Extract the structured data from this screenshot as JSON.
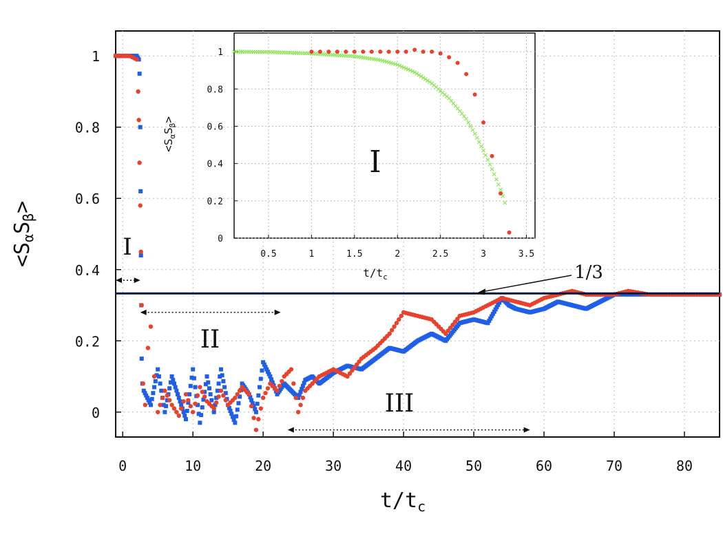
{
  "chart_data": [
    {
      "type": "scatter",
      "role": "main",
      "xlabel": "t/t",
      "xlabel_sub": "c",
      "ylabel": "<S",
      "ylabel_sub1": "α",
      "ylabel_mid": "S",
      "ylabel_sub2": "β",
      "ylabel_end": ">",
      "xlim": [
        -1,
        85
      ],
      "ylim": [
        -0.07,
        1.07
      ],
      "xticks": [
        "0",
        "10",
        "20",
        "30",
        "40",
        "50",
        "60",
        "70",
        "80"
      ],
      "yticks": [
        "0",
        "0.2",
        "0.4",
        "0.6",
        "0.8",
        "1"
      ],
      "reference_line": {
        "y": 0.333,
        "label": "1/3",
        "color": "#0a1a40"
      },
      "regions": [
        {
          "label": "I",
          "x_from": -1,
          "x_to": 2.5
        },
        {
          "label": "II",
          "x_from": 2.5,
          "x_to": 22.5
        },
        {
          "label": "III",
          "x_from": 23.5,
          "x_to": 58
        }
      ],
      "series": [
        {
          "name": "blue",
          "color": "#1f5fe8",
          "x": [
            -1,
            0,
            1,
            2,
            2.3,
            2.4,
            2.5,
            2.55,
            2.6,
            2.65,
            2.7,
            2.8,
            3,
            4,
            5,
            6,
            7,
            8,
            9,
            10,
            11,
            12,
            13,
            14,
            15,
            16,
            17,
            18,
            19,
            20,
            21,
            22,
            23,
            24,
            25,
            26,
            27,
            28,
            30,
            32,
            34,
            36,
            38,
            40,
            42,
            44,
            46,
            48,
            50,
            52,
            54,
            55,
            56,
            58,
            60,
            62,
            64,
            66,
            68,
            70,
            72,
            75,
            80,
            85
          ],
          "y": [
            1.0,
            1.0,
            1.0,
            1.0,
            0.99,
            0.95,
            0.8,
            0.62,
            0.44,
            0.3,
            0.15,
            0.08,
            0.06,
            0.02,
            0.12,
            0.0,
            0.1,
            0.04,
            -0.02,
            0.12,
            -0.03,
            0.1,
            0.0,
            0.12,
            0.02,
            -0.03,
            0.08,
            0.05,
            0.0,
            0.14,
            0.1,
            0.05,
            0.08,
            0.06,
            0.04,
            0.09,
            0.1,
            0.08,
            0.11,
            0.13,
            0.12,
            0.15,
            0.18,
            0.17,
            0.2,
            0.22,
            0.2,
            0.25,
            0.26,
            0.25,
            0.32,
            0.3,
            0.29,
            0.28,
            0.29,
            0.31,
            0.3,
            0.29,
            0.31,
            0.33,
            0.33,
            0.33,
            0.33,
            0.33
          ]
        },
        {
          "name": "red",
          "color": "#e8412c",
          "x": [
            -1,
            0,
            1,
            2,
            2.2,
            2.3,
            2.4,
            2.5,
            2.6,
            2.7,
            2.9,
            3.2,
            3.6,
            4,
            4.5,
            5,
            6,
            7,
            8,
            9,
            10,
            11,
            12,
            13,
            14,
            15,
            16,
            17,
            18,
            19,
            20,
            21,
            22,
            23,
            24,
            25,
            26,
            28,
            30,
            32,
            34,
            36,
            38,
            40,
            42,
            44,
            46,
            48,
            50,
            52,
            54,
            56,
            58,
            60,
            62,
            64,
            66,
            68,
            70,
            72,
            75,
            80,
            85
          ],
          "y": [
            1.0,
            1.0,
            1.0,
            0.99,
            0.9,
            0.82,
            0.7,
            0.58,
            0.45,
            0.3,
            0.08,
            0.02,
            0.18,
            0.24,
            0.1,
            0.0,
            0.06,
            0.02,
            -0.01,
            0.05,
            0.0,
            0.07,
            0.03,
            0.01,
            0.06,
            0.02,
            0.04,
            0.07,
            0.05,
            -0.05,
            0.04,
            0.08,
            0.06,
            0.1,
            0.12,
            0.0,
            0.06,
            0.1,
            0.12,
            0.1,
            0.15,
            0.18,
            0.22,
            0.28,
            0.27,
            0.26,
            0.22,
            0.27,
            0.28,
            0.3,
            0.32,
            0.31,
            0.3,
            0.32,
            0.33,
            0.34,
            0.33,
            0.33,
            0.33,
            0.34,
            0.33,
            0.33,
            0.33
          ]
        }
      ]
    },
    {
      "type": "scatter",
      "role": "inset",
      "title": "I",
      "xlabel": "t/t",
      "xlabel_sub": "c",
      "ylabel": "<S",
      "ylabel_sub1": "α",
      "ylabel_mid": "S",
      "ylabel_sub2": "β",
      "ylabel_end": ">",
      "xlim": [
        0.1,
        3.6
      ],
      "ylim": [
        0,
        1.1
      ],
      "xticks": [
        "0.5",
        "1",
        "1.5",
        "2",
        "2.5",
        "3",
        "3.5"
      ],
      "yticks": [
        "0",
        "0.2",
        "0.4",
        "0.6",
        "0.8",
        "1"
      ],
      "series": [
        {
          "name": "green",
          "color": "#8ee65a",
          "x": [
            0.1,
            0.5,
            1.0,
            1.5,
            1.8,
            2.0,
            2.2,
            2.4,
            2.6,
            2.8,
            2.9,
            3.0,
            3.1,
            3.2,
            3.25
          ],
          "y": [
            1.0,
            0.998,
            0.99,
            0.975,
            0.955,
            0.93,
            0.89,
            0.83,
            0.75,
            0.64,
            0.56,
            0.47,
            0.37,
            0.26,
            0.19
          ]
        },
        {
          "name": "red",
          "color": "#e8412c",
          "x": [
            1.0,
            1.1,
            1.2,
            1.3,
            1.4,
            1.5,
            1.6,
            1.7,
            1.8,
            1.9,
            2.0,
            2.1,
            2.2,
            2.3,
            2.4,
            2.5,
            2.6,
            2.7,
            2.8,
            2.9,
            3.0,
            3.1,
            3.2,
            3.3
          ],
          "y": [
            1.0,
            1.0,
            1.0,
            1.0,
            1.0,
            1.0,
            1.0,
            1.0,
            1.0,
            1.0,
            1.0,
            1.0,
            1.01,
            1.0,
            1.0,
            0.99,
            0.97,
            0.94,
            0.88,
            0.77,
            0.62,
            0.44,
            0.24,
            0.03
          ]
        }
      ]
    }
  ]
}
